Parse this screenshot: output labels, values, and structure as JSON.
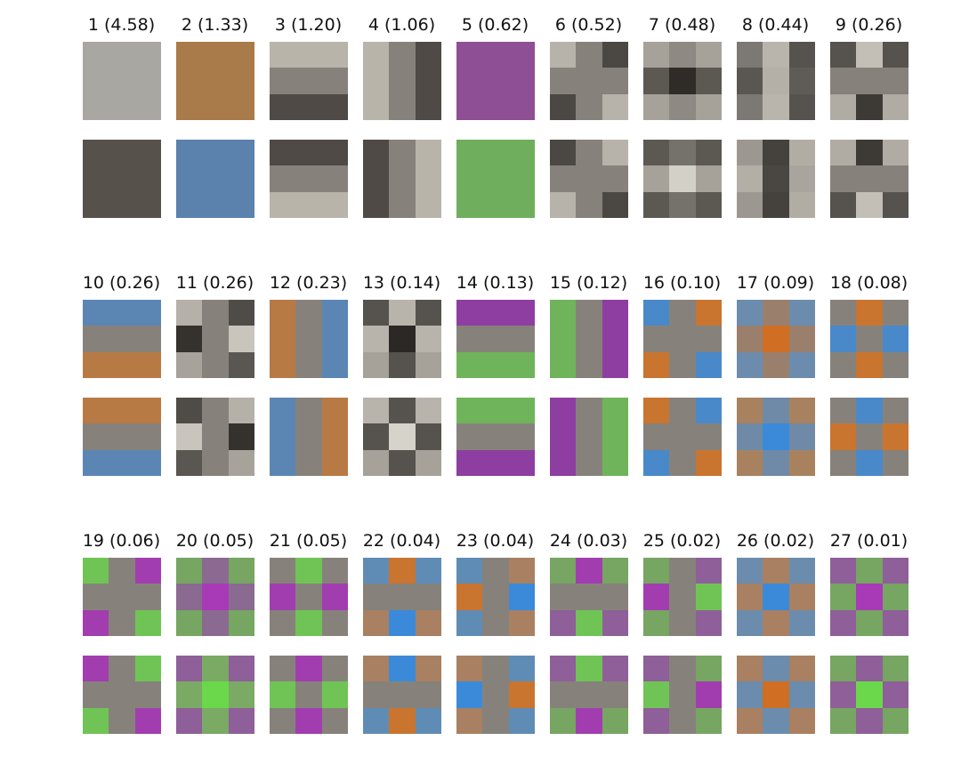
{
  "components": [
    {
      "label": "1 (4.58)",
      "top": [
        [
          "#a9a7a1",
          "#a9a7a1",
          "#a9a7a1"
        ],
        [
          "#a9a7a1",
          "#a9a7a1",
          "#a9a7a1"
        ],
        [
          "#a9a7a1",
          "#a9a7a1",
          "#a9a7a1"
        ]
      ],
      "bottom": [
        [
          "#56514b",
          "#56514b",
          "#56514b"
        ],
        [
          "#56514b",
          "#56514b",
          "#56514b"
        ],
        [
          "#56514b",
          "#56514b",
          "#56514b"
        ]
      ]
    },
    {
      "label": "2 (1.33)",
      "top": [
        [
          "#a97b4a",
          "#a97b4a",
          "#a97b4a"
        ],
        [
          "#a97b4a",
          "#a97b4a",
          "#a97b4a"
        ],
        [
          "#a97b4a",
          "#a97b4a",
          "#a97b4a"
        ]
      ],
      "bottom": [
        [
          "#5b81ad",
          "#5b81ad",
          "#5b81ad"
        ],
        [
          "#5b81ad",
          "#5b81ad",
          "#5b81ad"
        ],
        [
          "#5b81ad",
          "#5b81ad",
          "#5b81ad"
        ]
      ]
    },
    {
      "label": "3 (1.20)",
      "top": [
        [
          "#b8b4aa",
          "#b8b4aa",
          "#b8b4aa"
        ],
        [
          "#86827b",
          "#86827b",
          "#86827b"
        ],
        [
          "#4f4a45",
          "#4f4a45",
          "#4f4a45"
        ]
      ],
      "bottom": [
        [
          "#4f4a45",
          "#4f4a45",
          "#4f4a45"
        ],
        [
          "#86827b",
          "#86827b",
          "#86827b"
        ],
        [
          "#b8b4aa",
          "#b8b4aa",
          "#b8b4aa"
        ]
      ]
    },
    {
      "label": "4 (1.06)",
      "top": [
        [
          "#b8b4aa",
          "#86827b",
          "#4f4a45"
        ],
        [
          "#b8b4aa",
          "#86827b",
          "#4f4a45"
        ],
        [
          "#b8b4aa",
          "#86827b",
          "#4f4a45"
        ]
      ],
      "bottom": [
        [
          "#4f4a45",
          "#86827b",
          "#b8b4aa"
        ],
        [
          "#4f4a45",
          "#86827b",
          "#b8b4aa"
        ],
        [
          "#4f4a45",
          "#86827b",
          "#b8b4aa"
        ]
      ]
    },
    {
      "label": "5 (0.62)",
      "top": [
        [
          "#8e4f94",
          "#8e4f94",
          "#8e4f94"
        ],
        [
          "#8e4f94",
          "#8e4f94",
          "#8e4f94"
        ],
        [
          "#8e4f94",
          "#8e4f94",
          "#8e4f94"
        ]
      ],
      "bottom": [
        [
          "#6fae5c",
          "#6fae5c",
          "#6fae5c"
        ],
        [
          "#6fae5c",
          "#6fae5c",
          "#6fae5c"
        ],
        [
          "#6fae5c",
          "#6fae5c",
          "#6fae5c"
        ]
      ]
    },
    {
      "label": "6 (0.52)",
      "top": [
        [
          "#b7b3aa",
          "#86827b",
          "#4b4743"
        ],
        [
          "#86827b",
          "#86827b",
          "#86827b"
        ],
        [
          "#4b4743",
          "#86827b",
          "#b7b3aa"
        ]
      ],
      "bottom": [
        [
          "#4b4743",
          "#86827b",
          "#b7b3aa"
        ],
        [
          "#86827b",
          "#86827b",
          "#86827b"
        ],
        [
          "#b7b3aa",
          "#86827b",
          "#4b4743"
        ]
      ]
    },
    {
      "label": "7 (0.48)",
      "top": [
        [
          "#a6a29a",
          "#8e8a83",
          "#a6a29a"
        ],
        [
          "#5c5852",
          "#2f2c28",
          "#5c5852"
        ],
        [
          "#a6a29a",
          "#8e8a83",
          "#a6a29a"
        ]
      ],
      "bottom": [
        [
          "#5c5852",
          "#75716b",
          "#5c5852"
        ],
        [
          "#a6a29a",
          "#d3d0c8",
          "#a6a29a"
        ],
        [
          "#5c5852",
          "#75716b",
          "#5c5852"
        ]
      ]
    },
    {
      "label": "8 (0.44)",
      "top": [
        [
          "#7c7873",
          "#b9b5ad",
          "#56524d"
        ],
        [
          "#5a5651",
          "#b4b0a8",
          "#5f5b56"
        ],
        [
          "#7c7873",
          "#b9b5ad",
          "#56524d"
        ]
      ],
      "bottom": [
        [
          "#9c9891",
          "#45413d",
          "#b1ada5"
        ],
        [
          "#b3afa7",
          "#4a4642",
          "#a9a59e"
        ],
        [
          "#9c9891",
          "#45413d",
          "#b1ada5"
        ]
      ]
    },
    {
      "label": "9 (0.26)",
      "top": [
        [
          "#56524d",
          "#c3bfb7",
          "#56524d"
        ],
        [
          "#86827b",
          "#86827b",
          "#86827b"
        ],
        [
          "#b0aca4",
          "#3d3a36",
          "#b0aca4"
        ]
      ],
      "bottom": [
        [
          "#b0aca4",
          "#3d3a36",
          "#b0aca4"
        ],
        [
          "#86827b",
          "#86827b",
          "#86827b"
        ],
        [
          "#56524d",
          "#c3bfb7",
          "#56524d"
        ]
      ]
    },
    {
      "label": "10 (0.26)",
      "top": [
        [
          "#5b86b4",
          "#5b86b4",
          "#5b86b4"
        ],
        [
          "#86827b",
          "#86827b",
          "#86827b"
        ],
        [
          "#b87a44",
          "#b87a44",
          "#b87a44"
        ]
      ],
      "bottom": [
        [
          "#b87a44",
          "#b87a44",
          "#b87a44"
        ],
        [
          "#86827b",
          "#86827b",
          "#86827b"
        ],
        [
          "#5b86b4",
          "#5b86b4",
          "#5b86b4"
        ]
      ]
    },
    {
      "label": "11 (0.26)",
      "top": [
        [
          "#b5b1a9",
          "#86827b",
          "#4f4b46"
        ],
        [
          "#35322e",
          "#86827b",
          "#c9c5bd"
        ],
        [
          "#a7a39b",
          "#86827b",
          "#5a5651"
        ]
      ],
      "bottom": [
        [
          "#4f4b46",
          "#86827b",
          "#b5b1a9"
        ],
        [
          "#c9c5bd",
          "#86827b",
          "#35322e"
        ],
        [
          "#5a5651",
          "#86827b",
          "#a7a39b"
        ]
      ]
    },
    {
      "label": "12 (0.23)",
      "top": [
        [
          "#b87a44",
          "#86827b",
          "#5b86b4"
        ],
        [
          "#b87a44",
          "#86827b",
          "#5b86b4"
        ],
        [
          "#b87a44",
          "#86827b",
          "#5b86b4"
        ]
      ],
      "bottom": [
        [
          "#5b86b4",
          "#86827b",
          "#b87a44"
        ],
        [
          "#5b86b4",
          "#86827b",
          "#b87a44"
        ],
        [
          "#5b86b4",
          "#86827b",
          "#b87a44"
        ]
      ]
    },
    {
      "label": "13 (0.14)",
      "top": [
        [
          "#56524d",
          "#b8b4ac",
          "#56524d"
        ],
        [
          "#b8b4ac",
          "#2b2825",
          "#b8b4ac"
        ],
        [
          "#a6a29a",
          "#56524d",
          "#a6a29a"
        ]
      ],
      "bottom": [
        [
          "#b8b4ac",
          "#56524d",
          "#b8b4ac"
        ],
        [
          "#56524d",
          "#d6d3cb",
          "#56524d"
        ],
        [
          "#a6a29a",
          "#56524d",
          "#a6a29a"
        ]
      ]
    },
    {
      "label": "14 (0.13)",
      "top": [
        [
          "#8e3ea0",
          "#8e3ea0",
          "#8e3ea0"
        ],
        [
          "#86827b",
          "#86827b",
          "#86827b"
        ],
        [
          "#6fb45a",
          "#6fb45a",
          "#6fb45a"
        ]
      ],
      "bottom": [
        [
          "#6fb45a",
          "#6fb45a",
          "#6fb45a"
        ],
        [
          "#86827b",
          "#86827b",
          "#86827b"
        ],
        [
          "#8e3ea0",
          "#8e3ea0",
          "#8e3ea0"
        ]
      ]
    },
    {
      "label": "15 (0.12)",
      "top": [
        [
          "#6fb45a",
          "#86827b",
          "#8e3ea0"
        ],
        [
          "#6fb45a",
          "#86827b",
          "#8e3ea0"
        ],
        [
          "#6fb45a",
          "#86827b",
          "#8e3ea0"
        ]
      ],
      "bottom": [
        [
          "#8e3ea0",
          "#86827b",
          "#6fb45a"
        ],
        [
          "#8e3ea0",
          "#86827b",
          "#6fb45a"
        ],
        [
          "#8e3ea0",
          "#86827b",
          "#6fb45a"
        ]
      ]
    },
    {
      "label": "16 (0.10)",
      "top": [
        [
          "#4a89c9",
          "#86827b",
          "#c9742f"
        ],
        [
          "#86827b",
          "#86827b",
          "#86827b"
        ],
        [
          "#c9742f",
          "#86827b",
          "#4a89c9"
        ]
      ],
      "bottom": [
        [
          "#c9742f",
          "#86827b",
          "#4a89c9"
        ],
        [
          "#86827b",
          "#86827b",
          "#86827b"
        ],
        [
          "#4a89c9",
          "#86827b",
          "#c9742f"
        ]
      ]
    },
    {
      "label": "17 (0.09)",
      "top": [
        [
          "#6b8cad",
          "#9a7f6c",
          "#6b8cad"
        ],
        [
          "#9a7f6c",
          "#d06f23",
          "#9a7f6c"
        ],
        [
          "#6b8cad",
          "#9a7f6c",
          "#6b8cad"
        ]
      ],
      "bottom": [
        [
          "#a8825f",
          "#6f8aa7",
          "#a8825f"
        ],
        [
          "#6f8aa7",
          "#3b8ad9",
          "#6f8aa7"
        ],
        [
          "#a8825f",
          "#6f8aa7",
          "#a8825f"
        ]
      ]
    },
    {
      "label": "18 (0.08)",
      "top": [
        [
          "#86827b",
          "#c9742f",
          "#86827b"
        ],
        [
          "#4a89c9",
          "#86827b",
          "#4a89c9"
        ],
        [
          "#86827b",
          "#c9742f",
          "#86827b"
        ]
      ],
      "bottom": [
        [
          "#86827b",
          "#4a89c9",
          "#86827b"
        ],
        [
          "#c9742f",
          "#86827b",
          "#c9742f"
        ],
        [
          "#86827b",
          "#4a89c9",
          "#86827b"
        ]
      ]
    },
    {
      "label": "19 (0.06)",
      "top": [
        [
          "#70c455",
          "#86827b",
          "#a23db0"
        ],
        [
          "#86827b",
          "#86827b",
          "#86827b"
        ],
        [
          "#a23db0",
          "#86827b",
          "#70c455"
        ]
      ],
      "bottom": [
        [
          "#a23db0",
          "#86827b",
          "#70c455"
        ],
        [
          "#86827b",
          "#86827b",
          "#86827b"
        ],
        [
          "#70c455",
          "#86827b",
          "#a23db0"
        ]
      ]
    },
    {
      "label": "20 (0.05)",
      "top": [
        [
          "#77a562",
          "#8a6a91",
          "#77a562"
        ],
        [
          "#8a6a91",
          "#a83ab8",
          "#8a6a91"
        ],
        [
          "#77a562",
          "#8a6a91",
          "#77a562"
        ]
      ],
      "bottom": [
        [
          "#8e5f98",
          "#7aaa64",
          "#8e5f98"
        ],
        [
          "#7aaa64",
          "#6ad84a",
          "#7aaa64"
        ],
        [
          "#8e5f98",
          "#7aaa64",
          "#8e5f98"
        ]
      ]
    },
    {
      "label": "21 (0.05)",
      "top": [
        [
          "#86827b",
          "#70c455",
          "#86827b"
        ],
        [
          "#a23db0",
          "#86827b",
          "#a23db0"
        ],
        [
          "#86827b",
          "#70c455",
          "#86827b"
        ]
      ],
      "bottom": [
        [
          "#86827b",
          "#a23db0",
          "#86827b"
        ],
        [
          "#70c455",
          "#86827b",
          "#70c455"
        ],
        [
          "#86827b",
          "#a23db0",
          "#86827b"
        ]
      ]
    },
    {
      "label": "22 (0.04)",
      "top": [
        [
          "#5f8cb5",
          "#c9742f",
          "#5f8cb5"
        ],
        [
          "#86827b",
          "#86827b",
          "#86827b"
        ],
        [
          "#a98061",
          "#3b8ad9",
          "#a98061"
        ]
      ],
      "bottom": [
        [
          "#a98061",
          "#3b8ad9",
          "#a98061"
        ],
        [
          "#86827b",
          "#86827b",
          "#86827b"
        ],
        [
          "#5f8cb5",
          "#c9742f",
          "#5f8cb5"
        ]
      ]
    },
    {
      "label": "23 (0.04)",
      "top": [
        [
          "#5f8cb5",
          "#86827b",
          "#a98061"
        ],
        [
          "#c9742f",
          "#86827b",
          "#3b8ad9"
        ],
        [
          "#5f8cb5",
          "#86827b",
          "#a98061"
        ]
      ],
      "bottom": [
        [
          "#a98061",
          "#86827b",
          "#5f8cb5"
        ],
        [
          "#3b8ad9",
          "#86827b",
          "#c9742f"
        ],
        [
          "#a98061",
          "#86827b",
          "#5f8cb5"
        ]
      ]
    },
    {
      "label": "24 (0.03)",
      "top": [
        [
          "#77a562",
          "#a23db0",
          "#77a562"
        ],
        [
          "#86827b",
          "#86827b",
          "#86827b"
        ],
        [
          "#8e5f98",
          "#70c455",
          "#8e5f98"
        ]
      ],
      "bottom": [
        [
          "#8e5f98",
          "#70c455",
          "#8e5f98"
        ],
        [
          "#86827b",
          "#86827b",
          "#86827b"
        ],
        [
          "#77a562",
          "#a23db0",
          "#77a562"
        ]
      ]
    },
    {
      "label": "25 (0.02)",
      "top": [
        [
          "#77a562",
          "#86827b",
          "#8e5f98"
        ],
        [
          "#a23db0",
          "#86827b",
          "#70c455"
        ],
        [
          "#77a562",
          "#86827b",
          "#8e5f98"
        ]
      ],
      "bottom": [
        [
          "#8e5f98",
          "#86827b",
          "#77a562"
        ],
        [
          "#70c455",
          "#86827b",
          "#a23db0"
        ],
        [
          "#8e5f98",
          "#86827b",
          "#77a562"
        ]
      ]
    },
    {
      "label": "26 (0.02)",
      "top": [
        [
          "#6b8cad",
          "#a98061",
          "#6b8cad"
        ],
        [
          "#a98061",
          "#3b8ad9",
          "#a98061"
        ],
        [
          "#6b8cad",
          "#a98061",
          "#6b8cad"
        ]
      ],
      "bottom": [
        [
          "#a98061",
          "#6b8cad",
          "#a98061"
        ],
        [
          "#6b8cad",
          "#d06f23",
          "#6b8cad"
        ],
        [
          "#a98061",
          "#6b8cad",
          "#a98061"
        ]
      ]
    },
    {
      "label": "27 (0.01)",
      "top": [
        [
          "#8e5f98",
          "#77a562",
          "#8e5f98"
        ],
        [
          "#77a562",
          "#a83ab8",
          "#77a562"
        ],
        [
          "#8e5f98",
          "#77a562",
          "#8e5f98"
        ]
      ],
      "bottom": [
        [
          "#77a562",
          "#8e5f98",
          "#77a562"
        ],
        [
          "#8e5f98",
          "#6ad84a",
          "#8e5f98"
        ],
        [
          "#77a562",
          "#8e5f98",
          "#77a562"
        ]
      ]
    }
  ]
}
